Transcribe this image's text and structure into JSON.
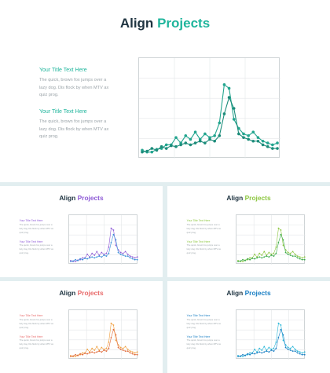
{
  "slides": [
    {
      "title_a": "Align",
      "title_b": "Projects",
      "accent": "#1fb59c",
      "line_a": "#23a58f",
      "line_b": "#1c8c7a",
      "blocks": [
        {
          "heading": "Your Title Text Here",
          "body": "The quick, brown fox jumps over a lazy dog. Dis flock by when MTV ax quiz prog."
        },
        {
          "heading": "Your Title Text Here",
          "body": "The quick, brown fox jumps over a lazy dog. Dis flock by when MTV ax quiz prog."
        }
      ]
    },
    {
      "title_a": "Align",
      "title_b": "Projects",
      "accent": "#8e5bd6",
      "line_a": "#8e5bd6",
      "line_b": "#3a8fd9",
      "blocks": [
        {
          "heading": "Your Title Text Here",
          "body": "The quick, brown fox jumps over a lazy dog. Dis flock by when MTV ax quiz prog."
        },
        {
          "heading": "Your Title Text Here",
          "body": "The quick, brown fox jumps over a lazy dog. Dis flock by when MTV ax quiz prog."
        }
      ]
    },
    {
      "title_a": "Align",
      "title_b": "Projects",
      "accent": "#8cc63f",
      "line_a": "#8cc63f",
      "line_b": "#3aaa4a",
      "blocks": [
        {
          "heading": "Your Title Text Here",
          "body": "The quick, brown fox jumps over a lazy dog. Dis flock by when MTV ax quiz prog."
        },
        {
          "heading": "Your Title Text Here",
          "body": "The quick, brown fox jumps over a lazy dog. Dis flock by when MTV ax quiz prog."
        }
      ]
    },
    {
      "title_a": "Align",
      "title_b": "Projects",
      "accent": "#e86b6b",
      "line_a": "#f0a040",
      "line_b": "#e06a3a",
      "blocks": [
        {
          "heading": "Your Title Text Here",
          "body": "The quick, brown fox jumps over a lazy dog. Dis flock by when MTV ax quiz prog."
        },
        {
          "heading": "Your Title Text Here",
          "body": "The quick, brown fox jumps over a lazy dog. Dis flock by when MTV ax quiz prog."
        }
      ]
    },
    {
      "title_a": "Align",
      "title_b": "Projects",
      "accent": "#1a7fc4",
      "line_a": "#27b6d8",
      "line_b": "#1a7fc4",
      "blocks": [
        {
          "heading": "Your Title Text Here",
          "body": "The quick, brown fox jumps over a lazy dog. Dis flock by when MTV ax quiz prog."
        },
        {
          "heading": "Your Title Text Here",
          "body": "The quick, brown fox jumps over a lazy dog. Dis flock by when MTV ax quiz prog."
        }
      ]
    }
  ],
  "chart_data": {
    "type": "line",
    "x": [
      1,
      2,
      3,
      4,
      5,
      6,
      7,
      8,
      9,
      10,
      11,
      12,
      13,
      14,
      15,
      16,
      17,
      18,
      19,
      20,
      21,
      22,
      23,
      24,
      25,
      26,
      27,
      28,
      29
    ],
    "ylim": [
      0,
      100
    ],
    "grid": true,
    "series": [
      {
        "values": [
          4,
          2,
          2,
          5,
          6,
          10,
          10,
          18,
          12,
          20,
          16,
          24,
          16,
          22,
          18,
          20,
          34,
          76,
          72,
          38,
          28,
          22,
          20,
          24,
          18,
          14,
          12,
          10,
          12
        ]
      },
      {
        "values": [
          2,
          3,
          6,
          4,
          8,
          6,
          9,
          8,
          10,
          12,
          10,
          12,
          14,
          12,
          16,
          14,
          20,
          44,
          62,
          50,
          22,
          18,
          16,
          14,
          14,
          10,
          8,
          6,
          6
        ]
      }
    ]
  }
}
